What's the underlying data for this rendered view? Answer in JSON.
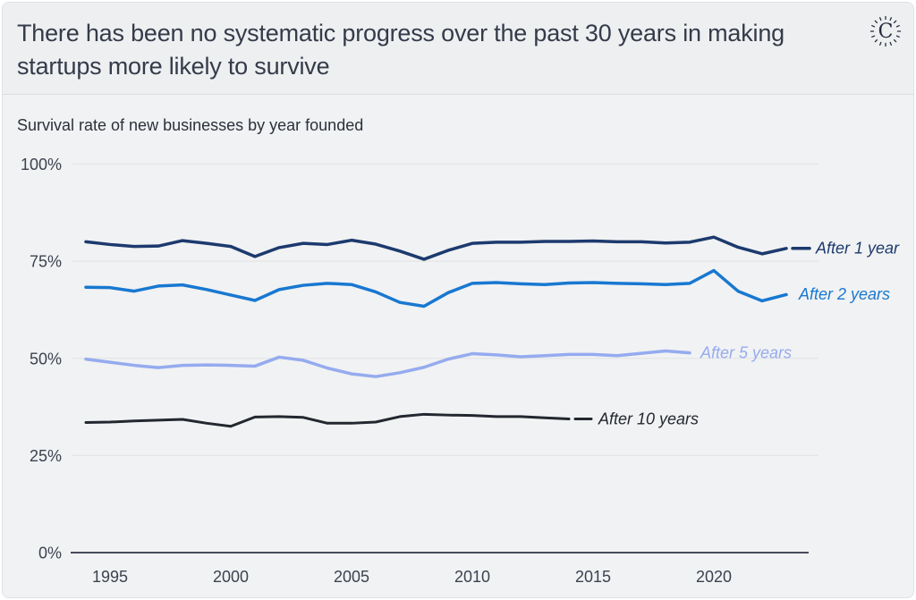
{
  "header": {
    "title": "There has been no systematic progress over the past 30 years in making startups more likely to survive",
    "logo_glyph": "C"
  },
  "subtitle": "Survival rate of new businesses by year founded",
  "colors": {
    "card_bg": "#f1f2f3",
    "header_bg": "#eeeff1",
    "title_text": "#343b49",
    "tick_text": "#3c4250",
    "grid": "#e3e4e6",
    "axis": "#454b59",
    "after_1_year": "#1c3a6e",
    "after_2_years": "#1878d1",
    "after_5_years": "#95abef",
    "after_10_years": "#23272f"
  },
  "chart_data": {
    "type": "line",
    "title": "Survival rate of new businesses by year founded",
    "xlabel": "",
    "ylabel": "",
    "unit": "%",
    "xlim": [
      1994,
      2024
    ],
    "ylim": [
      0,
      100
    ],
    "x_ticks": [
      1995,
      2000,
      2005,
      2010,
      2015,
      2020
    ],
    "y_ticks": [
      100,
      75,
      50,
      25,
      0
    ],
    "grid": "horizontal",
    "legend_position": "end-of-line-labels",
    "series": [
      {
        "name": "After 1 year",
        "color": "#1c3a6e",
        "width": 3.5,
        "start_year": 1994,
        "leader": 26,
        "label_dx": 33,
        "values": [
          80.0,
          79.3,
          78.8,
          78.9,
          80.3,
          79.6,
          78.8,
          76.2,
          78.5,
          79.6,
          79.3,
          80.4,
          79.4,
          77.6,
          75.5,
          77.8,
          79.6,
          79.9,
          79.9,
          80.1,
          80.1,
          80.2,
          80.0,
          80.0,
          79.7,
          79.9,
          81.2,
          78.6,
          76.9,
          78.3
        ]
      },
      {
        "name": "After 2 years",
        "color": "#1878d1",
        "width": 3.5,
        "start_year": 1994,
        "leader": 0,
        "label_dx": 14,
        "values": [
          68.3,
          68.2,
          67.3,
          68.6,
          68.9,
          67.7,
          66.3,
          64.9,
          67.7,
          68.8,
          69.3,
          69.0,
          67.1,
          64.4,
          63.4,
          66.9,
          69.3,
          69.5,
          69.2,
          69.0,
          69.4,
          69.5,
          69.3,
          69.2,
          69.0,
          69.3,
          72.6,
          67.3,
          64.8,
          66.4
        ]
      },
      {
        "name": "After 5 years",
        "color": "#95abef",
        "width": 3.5,
        "start_year": 1994,
        "leader": 0,
        "label_dx": 12,
        "values": [
          49.8,
          49.0,
          48.2,
          47.6,
          48.2,
          48.3,
          48.2,
          48.0,
          50.3,
          49.5,
          47.5,
          46.0,
          45.3,
          46.3,
          47.7,
          49.8,
          51.2,
          50.9,
          50.4,
          50.7,
          51.0,
          51.0,
          50.7,
          51.3,
          51.9,
          51.4
        ]
      },
      {
        "name": "After 10 years",
        "color": "#23272f",
        "width": 3,
        "start_year": 1994,
        "leader": 25,
        "label_dx": 33,
        "values": [
          33.5,
          33.6,
          33.9,
          34.1,
          34.3,
          33.3,
          32.5,
          34.9,
          35.0,
          34.8,
          33.3,
          33.3,
          33.6,
          35.0,
          35.6,
          35.4,
          35.3,
          35.0,
          35.0,
          34.7,
          34.4
        ]
      }
    ]
  }
}
